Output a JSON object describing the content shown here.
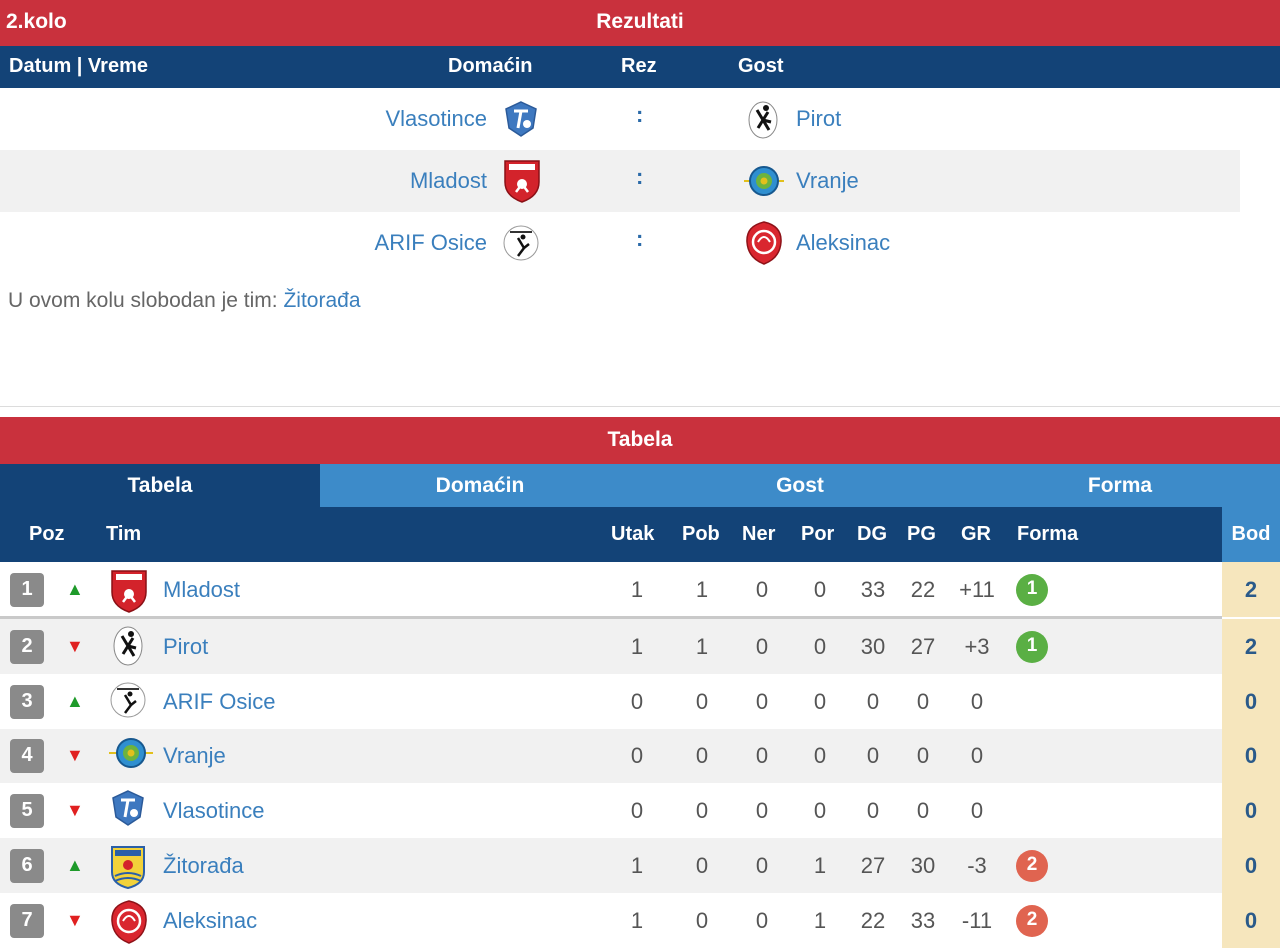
{
  "results": {
    "round": "2.kolo",
    "title": "Rezultati",
    "columns": {
      "date": "Datum | Vreme",
      "home": "Domaćin",
      "score": "Rez",
      "away": "Gost"
    },
    "matches": [
      {
        "home": "Vlasotince",
        "score": ":",
        "away": "Pirot"
      },
      {
        "home": "Mladost",
        "score": ":",
        "away": "Vranje"
      },
      {
        "home": "ARIF Osice",
        "score": ":",
        "away": "Aleksinac"
      }
    ],
    "bye_text": "U ovom kolu slobodan je tim:",
    "bye_team": "Žitorađa"
  },
  "standings": {
    "title": "Tabela",
    "tabs": [
      "Tabela",
      "Domaćin",
      "Gost",
      "Forma"
    ],
    "active_tab": "Tabela",
    "columns": {
      "pos": "Poz",
      "team": "Tim",
      "played": "Utak",
      "won": "Pob",
      "draw": "Ner",
      "lost": "Por",
      "gf": "DG",
      "ga": "PG",
      "gd": "GR",
      "form": "Forma",
      "points": "Bod"
    },
    "rows": [
      {
        "pos": "1",
        "trend": "up",
        "team": "Mladost",
        "played": "1",
        "won": "1",
        "draw": "0",
        "lost": "0",
        "gf": "33",
        "ga": "22",
        "gd": "+11",
        "form": "1",
        "form_type": "win",
        "points": "2"
      },
      {
        "pos": "2",
        "trend": "down",
        "team": "Pirot",
        "played": "1",
        "won": "1",
        "draw": "0",
        "lost": "0",
        "gf": "30",
        "ga": "27",
        "gd": "+3",
        "form": "1",
        "form_type": "win",
        "points": "2"
      },
      {
        "pos": "3",
        "trend": "up",
        "team": "ARIF Osice",
        "played": "0",
        "won": "0",
        "draw": "0",
        "lost": "0",
        "gf": "0",
        "ga": "0",
        "gd": "0",
        "form": "",
        "form_type": "",
        "points": "0"
      },
      {
        "pos": "4",
        "trend": "down",
        "team": "Vranje",
        "played": "0",
        "won": "0",
        "draw": "0",
        "lost": "0",
        "gf": "0",
        "ga": "0",
        "gd": "0",
        "form": "",
        "form_type": "",
        "points": "0"
      },
      {
        "pos": "5",
        "trend": "down",
        "team": "Vlasotince",
        "played": "0",
        "won": "0",
        "draw": "0",
        "lost": "0",
        "gf": "0",
        "ga": "0",
        "gd": "0",
        "form": "",
        "form_type": "",
        "points": "0"
      },
      {
        "pos": "6",
        "trend": "up",
        "team": "Žitorađa",
        "played": "1",
        "won": "0",
        "draw": "0",
        "lost": "1",
        "gf": "27",
        "ga": "30",
        "gd": "-3",
        "form": "2",
        "form_type": "loss",
        "points": "0"
      },
      {
        "pos": "7",
        "trend": "down",
        "team": "Aleksinac",
        "played": "1",
        "won": "0",
        "draw": "0",
        "lost": "1",
        "gf": "22",
        "ga": "33",
        "gd": "-11",
        "form": "2",
        "form_type": "loss",
        "points": "0"
      }
    ],
    "trend_symbols": {
      "up": "▲",
      "down": "▼"
    }
  },
  "colors": {
    "header_red": "#c9313d",
    "navy": "#134377",
    "light_blue": "#3d8bc9",
    "link_blue": "#3a7fbd",
    "win_green": "#5aaf44",
    "loss_red": "#e06450",
    "points_bg": "#f6e6bd"
  }
}
